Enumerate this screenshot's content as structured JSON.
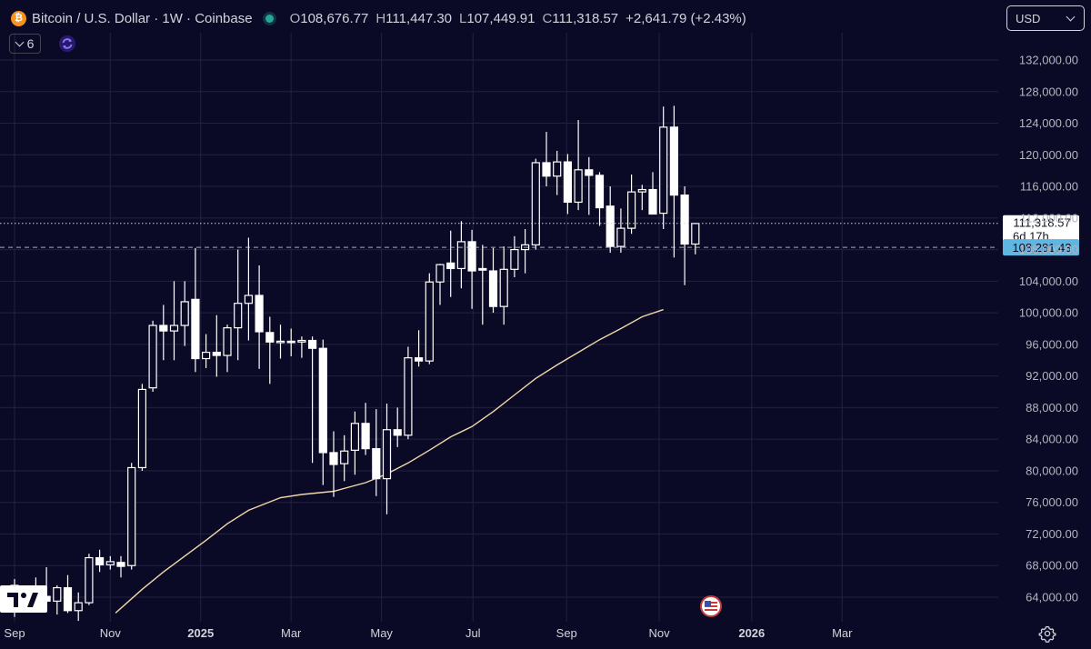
{
  "header": {
    "coin_icon": "bitcoin-icon",
    "coin_glyph": "₿",
    "symbol": "Bitcoin / U.S. Dollar · 1W · Coinbase",
    "ohlc": [
      {
        "label": "O",
        "value": "108,676.77"
      },
      {
        "label": "H",
        "value": "111,447.30"
      },
      {
        "label": "L",
        "value": "107,449.91"
      },
      {
        "label": "C",
        "value": "111,318.57"
      }
    ],
    "change": "+2,641.79 (+2.43%)",
    "status_color": "#26a69a"
  },
  "indicators": {
    "count": "6"
  },
  "currency": {
    "value": "USD"
  },
  "colors": {
    "background": "#0b0a26",
    "candle": "#ffffff",
    "ma_line": "#f0d9a8",
    "grid": "#22213f",
    "price_label": "#5fb6e0"
  },
  "chart_data": {
    "type": "candlestick",
    "interval": "1W",
    "y_range": [
      62000,
      134000
    ],
    "y_ticks": [
      "132,000.00",
      "128,000.00",
      "124,000.00",
      "120,000.00",
      "116,000.00",
      "112,000.00",
      "108,000.00",
      "104,000.00",
      "100,000.00",
      "96,000.00",
      "92,000.00",
      "88,000.00",
      "84,000.00",
      "80,000.00",
      "76,000.00",
      "72,000.00",
      "68,000.00",
      "64,000.00"
    ],
    "x_labels": [
      {
        "text": "Sep",
        "week": 0,
        "bold": false
      },
      {
        "text": "Nov",
        "week": 9,
        "bold": false
      },
      {
        "text": "2025",
        "week": 17.5,
        "bold": true
      },
      {
        "text": "Mar",
        "week": 26,
        "bold": false
      },
      {
        "text": "May",
        "week": 34.5,
        "bold": false
      },
      {
        "text": "Jul",
        "week": 43.1,
        "bold": false
      },
      {
        "text": "Sep",
        "week": 51.9,
        "bold": false
      },
      {
        "text": "Nov",
        "week": 60.6,
        "bold": false
      },
      {
        "text": "2026",
        "week": 69.3,
        "bold": true
      },
      {
        "text": "Mar",
        "week": 77.8,
        "bold": false
      }
    ],
    "current_price": {
      "value": "111,318.57",
      "countdown": "6d 17h",
      "price": 111318.57
    },
    "line_price": {
      "value": "108,281.43",
      "price": 108281.43
    },
    "candles": [
      [
        65500,
        66300,
        61500,
        63200
      ],
      [
        63200,
        65300,
        62300,
        65000
      ],
      [
        65000,
        66500,
        62500,
        64100
      ],
      [
        64100,
        67800,
        63000,
        63500
      ],
      [
        63500,
        65500,
        61800,
        65200
      ],
      [
        65200,
        66800,
        62000,
        62300
      ],
      [
        62300,
        64600,
        61000,
        63300
      ],
      [
        63300,
        69500,
        63000,
        69000
      ],
      [
        69000,
        70000,
        67200,
        68100
      ],
      [
        68100,
        69200,
        67500,
        68500
      ],
      [
        68400,
        69200,
        66500,
        67900
      ],
      [
        68000,
        81000,
        67500,
        80400
      ],
      [
        80400,
        91000,
        80000,
        90300
      ],
      [
        90500,
        99000,
        90000,
        98400
      ],
      [
        98400,
        101000,
        94000,
        97700
      ],
      [
        97700,
        104000,
        94000,
        98400
      ],
      [
        98400,
        104000,
        95800,
        101400
      ],
      [
        101700,
        108200,
        92500,
        94200
      ],
      [
        94200,
        97300,
        93000,
        95000
      ],
      [
        95000,
        99700,
        91900,
        94600
      ],
      [
        94600,
        98500,
        92500,
        98100
      ],
      [
        98100,
        108000,
        94000,
        101200
      ],
      [
        101200,
        109500,
        96500,
        102200
      ],
      [
        102200,
        106000,
        92900,
        97600
      ],
      [
        97500,
        99500,
        91000,
        96300
      ],
      [
        96300,
        98500,
        94200,
        96400
      ],
      [
        96400,
        98000,
        94500,
        96300
      ],
      [
        96300,
        97000,
        94300,
        96500
      ],
      [
        96500,
        97000,
        81000,
        95500
      ],
      [
        95500,
        96600,
        78200,
        82300
      ],
      [
        82300,
        85000,
        76700,
        80800
      ],
      [
        80900,
        84500,
        78700,
        82500
      ],
      [
        82600,
        87500,
        79500,
        86000
      ],
      [
        86000,
        88600,
        82000,
        82800
      ],
      [
        82800,
        87800,
        76800,
        79000
      ],
      [
        79000,
        88500,
        74500,
        85200
      ],
      [
        85200,
        88000,
        83000,
        84500
      ],
      [
        84500,
        95700,
        84000,
        94300
      ],
      [
        94300,
        97800,
        93200,
        93900
      ],
      [
        93900,
        105000,
        93500,
        103900
      ],
      [
        103900,
        106200,
        101000,
        106100
      ],
      [
        106300,
        110400,
        102000,
        105600
      ],
      [
        105600,
        111600,
        103100,
        109000
      ],
      [
        109000,
        110500,
        100500,
        105300
      ],
      [
        105600,
        108600,
        98500,
        105400
      ],
      [
        105300,
        108200,
        100000,
        100800
      ],
      [
        100800,
        108400,
        98500,
        105500
      ],
      [
        105500,
        109700,
        104500,
        108000
      ],
      [
        108000,
        110600,
        105000,
        108600
      ],
      [
        108600,
        119500,
        108000,
        119000
      ],
      [
        119000,
        122900,
        116000,
        117300
      ],
      [
        117300,
        120500,
        114900,
        119100
      ],
      [
        119100,
        120100,
        112500,
        114000
      ],
      [
        114000,
        124400,
        113000,
        118100
      ],
      [
        118100,
        119700,
        112400,
        117400
      ],
      [
        117400,
        117800,
        111000,
        113300
      ],
      [
        113500,
        116000,
        107600,
        108400
      ],
      [
        108400,
        113200,
        107600,
        110700
      ],
      [
        110700,
        117500,
        110000,
        115300
      ],
      [
        115300,
        116200,
        113000,
        115600
      ],
      [
        115600,
        117800,
        112700,
        112500
      ],
      [
        112600,
        126100,
        110600,
        123500
      ],
      [
        123500,
        126200,
        107000,
        114900
      ],
      [
        114900,
        116000,
        103500,
        108700
      ],
      [
        108700,
        111400,
        107400,
        111300
      ]
    ],
    "ma": [
      [
        9.5,
        62000
      ],
      [
        12,
        65000
      ],
      [
        14,
        67200
      ],
      [
        16,
        69200
      ],
      [
        18,
        71200
      ],
      [
        20,
        73300
      ],
      [
        22,
        75000
      ],
      [
        25,
        76600
      ],
      [
        27,
        77000
      ],
      [
        30,
        77400
      ],
      [
        33,
        78500
      ],
      [
        35,
        79600
      ],
      [
        37,
        81000
      ],
      [
        39,
        82600
      ],
      [
        41,
        84300
      ],
      [
        43,
        85600
      ],
      [
        45,
        87500
      ],
      [
        47,
        89600
      ],
      [
        49,
        91700
      ],
      [
        51,
        93400
      ],
      [
        53,
        95000
      ],
      [
        55,
        96600
      ],
      [
        57,
        98000
      ],
      [
        59,
        99500
      ],
      [
        61,
        100400
      ]
    ]
  }
}
